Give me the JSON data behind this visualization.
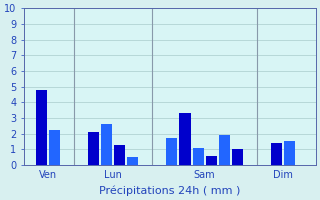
{
  "bars": [
    {
      "x": 1,
      "height": 4.8,
      "color": "#0000cc"
    },
    {
      "x": 2,
      "height": 2.2,
      "color": "#2266ff"
    },
    {
      "x": 5,
      "height": 2.1,
      "color": "#0000cc"
    },
    {
      "x": 6,
      "height": 2.6,
      "color": "#2266ff"
    },
    {
      "x": 7,
      "height": 1.3,
      "color": "#0000cc"
    },
    {
      "x": 8,
      "height": 0.5,
      "color": "#2266ff"
    },
    {
      "x": 11,
      "height": 1.7,
      "color": "#2266ff"
    },
    {
      "x": 12,
      "height": 3.3,
      "color": "#0000cc"
    },
    {
      "x": 13,
      "height": 1.1,
      "color": "#2266ff"
    },
    {
      "x": 14,
      "height": 0.6,
      "color": "#0000cc"
    },
    {
      "x": 15,
      "height": 1.9,
      "color": "#2266ff"
    },
    {
      "x": 16,
      "height": 1.0,
      "color": "#0000cc"
    },
    {
      "x": 19,
      "height": 1.4,
      "color": "#0000cc"
    },
    {
      "x": 20,
      "height": 1.5,
      "color": "#2266ff"
    }
  ],
  "day_lines": [
    3.5,
    9.5,
    17.5
  ],
  "xtick_positions": [
    1.5,
    6.5,
    13.5,
    19.5
  ],
  "xtick_labels": [
    "Ven",
    "Lun",
    "Sam",
    "Dim"
  ],
  "ytick_labels": [
    "0",
    "1",
    "2",
    "3",
    "4",
    "5",
    "6",
    "7",
    "8",
    "9",
    "10"
  ],
  "ylim": [
    0,
    10
  ],
  "xlim": [
    -0.3,
    22
  ],
  "xlabel": "Précipitations 24h ( mm )",
  "background_color": "#d8f0f0",
  "plot_bg_color": "#d8f5f5",
  "bar_width": 0.85,
  "grid_color": "#aacccc",
  "day_line_color": "#8899aa",
  "axis_color": "#5566aa",
  "label_color": "#2244bb",
  "tick_label_color": "#2244bb",
  "xlabel_fontsize": 8,
  "tick_fontsize": 7
}
